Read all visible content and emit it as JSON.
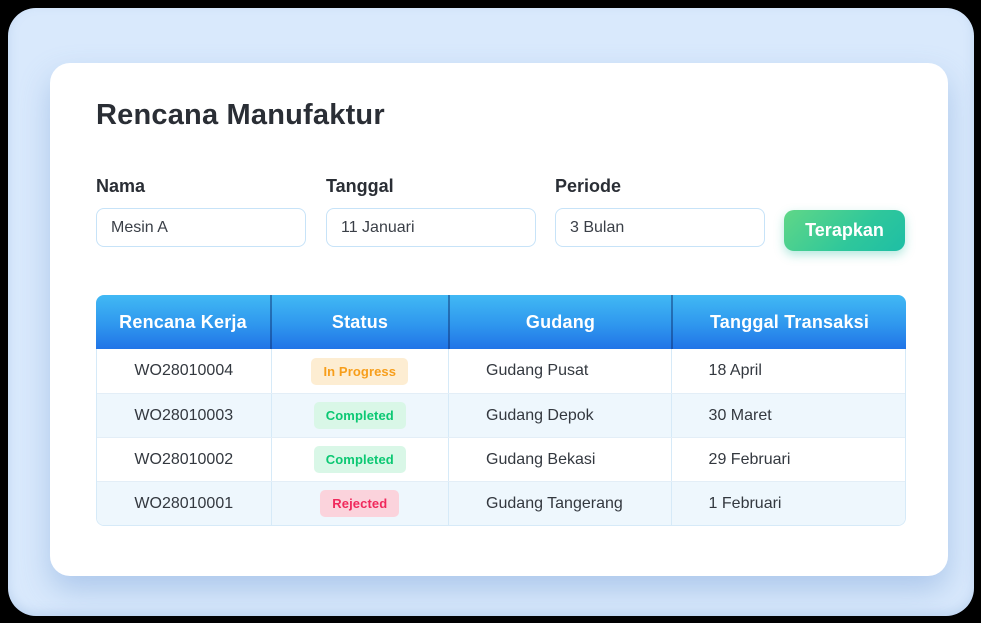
{
  "title": "Rencana Manufaktur",
  "filters": {
    "fields": [
      {
        "label": "Nama",
        "value": "Mesin A"
      },
      {
        "label": "Tanggal",
        "value": "11 Januari"
      },
      {
        "label": "Periode",
        "value": "3 Bulan"
      }
    ],
    "apply_label": "Terapkan"
  },
  "table": {
    "columns": [
      "Rencana Kerja",
      "Status",
      "Gudang",
      "Tanggal Transaksi"
    ],
    "rows": [
      {
        "rencana_kerja": "WO28010004",
        "status": "In Progress",
        "gudang": "Gudang Pusat",
        "tanggal_transaksi": "18 April"
      },
      {
        "rencana_kerja": "WO28010003",
        "status": "Completed",
        "gudang": "Gudang Depok",
        "tanggal_transaksi": "30 Maret"
      },
      {
        "rencana_kerja": "WO28010002",
        "status": "Completed",
        "gudang": "Gudang Bekasi",
        "tanggal_transaksi": "29 Februari"
      },
      {
        "rencana_kerja": "WO28010001",
        "status": "Rejected",
        "gudang": "Gudang Tangerang",
        "tanggal_transaksi": "1 Februari"
      }
    ]
  },
  "colors": {
    "panel_bg": "#D9E9FC",
    "card_bg": "#FFFFFF",
    "title_text": "#2A2E35",
    "table_header_gradient_top": "#41B9F4",
    "table_header_gradient_bottom": "#2174E7",
    "apply_button_gradient_start": "#60D787",
    "apply_button_gradient_end": "#1EBEA5",
    "status_in_progress": {
      "bg": "#FDEDD2",
      "text": "#F79E1B"
    },
    "status_completed": {
      "bg": "#D9F7E7",
      "text": "#0CC873"
    },
    "status_rejected": {
      "bg": "#FBD3DC",
      "text": "#F0295C"
    }
  }
}
